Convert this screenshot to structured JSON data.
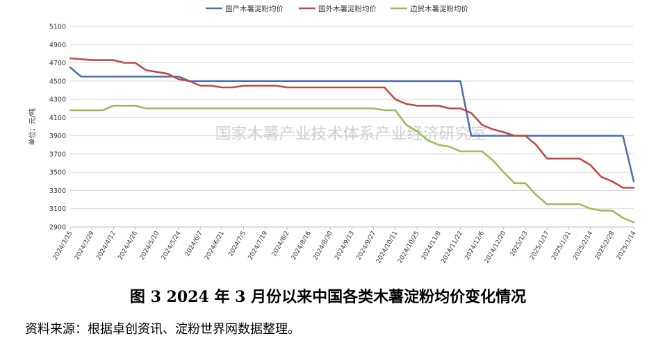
{
  "figure": {
    "caption": "图 3   2024 年 3 月份以来中国各类木薯淀粉均价变化情况",
    "source": "资料来源：根据卓创资讯、淀粉世界网数据整理。",
    "watermark": "国家木薯产业技术体系产业经济研究室"
  },
  "chart_data": {
    "type": "line",
    "title": "",
    "xlabel": "",
    "ylabel": "单位：元/吨",
    "ylim": [
      2900,
      5100
    ],
    "yticks": [
      2900,
      3100,
      3300,
      3500,
      3700,
      3900,
      4100,
      4300,
      4500,
      4700,
      4900,
      5100
    ],
    "grid": "horizontal",
    "legend_position": "top",
    "x": [
      "2024/3/15",
      "2024/3/22",
      "2024/3/29",
      "2024/4/5",
      "2024/4/12",
      "2024/4/19",
      "2024/4/26",
      "2024/5/3",
      "2024/5/10",
      "2024/5/17",
      "2024/5/24",
      "2024/5/31",
      "2024/6/7",
      "2024/6/14",
      "2024/6/21",
      "2024/6/28",
      "2024/7/5",
      "2024/7/12",
      "2024/7/19",
      "2024/7/26",
      "2024/8/2",
      "2024/8/9",
      "2024/8/16",
      "2024/8/23",
      "2024/8/30",
      "2024/9/6",
      "2024/9/13",
      "2024/9/20",
      "2024/9/27",
      "2024/10/4",
      "2024/10/11",
      "2024/10/18",
      "2024/10/25",
      "2024/11/1",
      "2024/11/8",
      "2024/11/15",
      "2024/11/22",
      "2024/11/29",
      "2024/12/6",
      "2024/12/13",
      "2024/12/20",
      "2024/12/27",
      "2025/1/3",
      "2025/1/10",
      "2025/1/17",
      "2025/1/24",
      "2025/1/31",
      "2025/2/7",
      "2025/2/14",
      "2025/2/21",
      "2025/2/28",
      "2025/3/7",
      "2025/3/14"
    ],
    "xtick_labels": [
      "2024/3/15",
      "2024/3/29",
      "2024/4/12",
      "2024/4/26",
      "2024/5/10",
      "2024/5/24",
      "2024/6/7",
      "2024/6/21",
      "2024/7/5",
      "2024/7/19",
      "2024/8/2",
      "2024/8/16",
      "2024/8/30",
      "2024/9/13",
      "2024/9/27",
      "2024/10/11",
      "2024/10/25",
      "2024/11/8",
      "2024/11/22",
      "2024/12/6",
      "2024/12/20",
      "2025/1/3",
      "2025/1/17",
      "2025/1/31",
      "2025/2/14",
      "2025/2/28",
      "2025/3/14"
    ],
    "series": [
      {
        "name": "国产木薯淀粉均价",
        "color": "#4a72b0",
        "values": [
          4650,
          4550,
          4550,
          4550,
          4550,
          4550,
          4550,
          4550,
          4550,
          4550,
          4550,
          4500,
          4500,
          4500,
          4500,
          4500,
          4500,
          4500,
          4500,
          4500,
          4500,
          4500,
          4500,
          4500,
          4500,
          4500,
          4500,
          4500,
          4500,
          4500,
          4500,
          4500,
          4500,
          4500,
          4500,
          4500,
          4500,
          3900,
          3900,
          3900,
          3900,
          3900,
          3900,
          3900,
          3900,
          3900,
          3900,
          3900,
          3900,
          3900,
          3900,
          3900,
          3400
        ]
      },
      {
        "name": "国外木薯淀粉均价",
        "color": "#be4b48",
        "values": [
          4750,
          4740,
          4730,
          4730,
          4730,
          4700,
          4700,
          4620,
          4600,
          4580,
          4520,
          4500,
          4450,
          4450,
          4430,
          4430,
          4450,
          4450,
          4450,
          4450,
          4430,
          4430,
          4430,
          4430,
          4430,
          4430,
          4430,
          4430,
          4430,
          4430,
          4300,
          4250,
          4230,
          4230,
          4230,
          4200,
          4200,
          4150,
          4020,
          3970,
          3940,
          3900,
          3900,
          3800,
          3650,
          3650,
          3650,
          3650,
          3580,
          3450,
          3400,
          3330,
          3330
        ]
      },
      {
        "name": "边贸木薯淀粉均价",
        "color": "#9bbb59",
        "values": [
          4180,
          4180,
          4180,
          4180,
          4230,
          4230,
          4230,
          4200,
          4200,
          4200,
          4200,
          4200,
          4200,
          4200,
          4200,
          4200,
          4200,
          4200,
          4200,
          4200,
          4200,
          4200,
          4200,
          4200,
          4200,
          4200,
          4200,
          4200,
          4200,
          4180,
          4180,
          4020,
          3950,
          3850,
          3800,
          3780,
          3730,
          3730,
          3730,
          3630,
          3500,
          3380,
          3380,
          3250,
          3150,
          3150,
          3150,
          3150,
          3100,
          3080,
          3080,
          3000,
          2950
        ]
      }
    ]
  }
}
